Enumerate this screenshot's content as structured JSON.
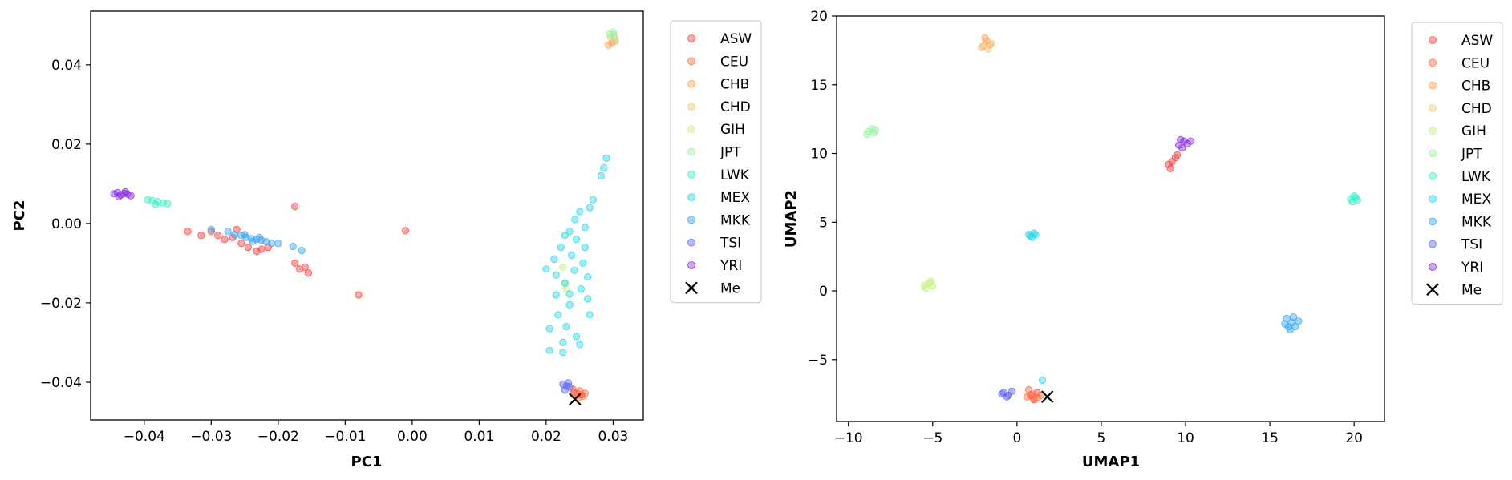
{
  "chart_data": [
    {
      "type": "scatter",
      "title": "",
      "xlabel": "PC1",
      "ylabel": "PC2",
      "xlim": [
        -0.048,
        0.0345
      ],
      "ylim": [
        -0.0495,
        0.0535
      ],
      "xticks": [
        -0.04,
        -0.03,
        -0.02,
        -0.01,
        0.0,
        0.01,
        0.02,
        0.03
      ],
      "xtick_labels": [
        "−0.04",
        "−0.03",
        "−0.02",
        "−0.01",
        "0.00",
        "0.01",
        "0.02",
        "0.03"
      ],
      "yticks": [
        -0.04,
        -0.02,
        0.0,
        0.02,
        0.04
      ],
      "ytick_labels": [
        "−0.04",
        "−0.02",
        "0.00",
        "0.02",
        "0.04"
      ],
      "legend_position": "outside-right",
      "series": [
        {
          "name": "ASW",
          "color": "#ff3b3b",
          "points": [
            [
              -0.0335,
              -0.002
            ],
            [
              -0.0315,
              -0.003
            ],
            [
              -0.03,
              -0.002
            ],
            [
              -0.029,
              -0.003
            ],
            [
              -0.028,
              -0.004
            ],
            [
              -0.0268,
              -0.0035
            ],
            [
              -0.0255,
              -0.005
            ],
            [
              -0.0245,
              -0.006
            ],
            [
              -0.0232,
              -0.007
            ],
            [
              -0.0225,
              -0.0065
            ],
            [
              -0.0262,
              -0.0015
            ],
            [
              -0.0215,
              -0.006
            ],
            [
              -0.0175,
              -0.01
            ],
            [
              -0.0168,
              -0.0115
            ],
            [
              -0.016,
              -0.011
            ],
            [
              -0.0155,
              -0.0125
            ],
            [
              -0.0175,
              0.0043
            ],
            [
              -0.008,
              -0.018
            ],
            [
              -0.001,
              -0.0018
            ],
            [
              0.0242,
              -0.0425
            ],
            [
              0.0252,
              -0.0432
            ]
          ]
        },
        {
          "name": "CEU",
          "color": "#ff6a3d",
          "points": [
            [
              0.024,
              -0.0418
            ],
            [
              0.0245,
              -0.0428
            ],
            [
              0.025,
              -0.0422
            ],
            [
              0.0255,
              -0.0435
            ],
            [
              0.0248,
              -0.044
            ],
            [
              0.0258,
              -0.0428
            ]
          ]
        },
        {
          "name": "CHB",
          "color": "#ff9f55",
          "points": [
            [
              0.0293,
              0.045
            ],
            [
              0.0298,
              0.0455
            ],
            [
              0.0303,
              0.046
            ]
          ]
        },
        {
          "name": "CHD",
          "color": "#f2c77c",
          "points": [
            [
              0.0296,
              0.047
            ],
            [
              0.0301,
              0.0475
            ]
          ]
        },
        {
          "name": "GIH",
          "color": "#c4f07c",
          "points": [
            [
              0.0225,
              -0.011
            ],
            [
              0.0228,
              -0.015
            ],
            [
              0.023,
              -0.0165
            ]
          ]
        },
        {
          "name": "JPT",
          "color": "#96f2a0",
          "points": [
            [
              0.0295,
              0.0478
            ],
            [
              0.03,
              0.0482
            ],
            [
              0.0302,
              0.0468
            ]
          ]
        },
        {
          "name": "LWK",
          "color": "#36f0c8",
          "points": [
            [
              -0.0395,
              0.006
            ],
            [
              -0.0388,
              0.0058
            ],
            [
              -0.038,
              0.0055
            ],
            [
              -0.0372,
              0.0052
            ],
            [
              -0.0365,
              0.005
            ],
            [
              -0.0383,
              0.0048
            ]
          ]
        },
        {
          "name": "MEX",
          "color": "#2ad8e6",
          "points": [
            [
              0.029,
              0.0165
            ],
            [
              0.0286,
              0.014
            ],
            [
              0.0282,
              0.012
            ],
            [
              0.027,
              0.006
            ],
            [
              0.0265,
              0.004
            ],
            [
              0.025,
              0.003
            ],
            [
              0.0243,
              0.001
            ],
            [
              0.0258,
              -0.001
            ],
            [
              0.0235,
              -0.002
            ],
            [
              0.0228,
              -0.003
            ],
            [
              0.0245,
              -0.004
            ],
            [
              0.0222,
              -0.006
            ],
            [
              0.0258,
              -0.006
            ],
            [
              0.0238,
              -0.008
            ],
            [
              0.0212,
              -0.009
            ],
            [
              0.0255,
              -0.01
            ],
            [
              0.02,
              -0.0115
            ],
            [
              0.0215,
              -0.013
            ],
            [
              0.0262,
              -0.0135
            ],
            [
              0.0228,
              -0.015
            ],
            [
              0.0252,
              -0.0165
            ],
            [
              0.0215,
              -0.018
            ],
            [
              0.0262,
              -0.019
            ],
            [
              0.0235,
              -0.0205
            ],
            [
              0.0218,
              -0.023
            ],
            [
              0.0265,
              -0.023
            ],
            [
              0.023,
              -0.026
            ],
            [
              0.0205,
              -0.0265
            ],
            [
              0.0245,
              -0.0285
            ],
            [
              0.0225,
              -0.03
            ],
            [
              0.0205,
              -0.032
            ],
            [
              0.0225,
              -0.0325
            ],
            [
              0.025,
              -0.0305
            ],
            [
              0.0235,
              -0.0178
            ],
            [
              0.0242,
              -0.0118
            ]
          ]
        },
        {
          "name": "MKK",
          "color": "#3aa3f5",
          "points": [
            [
              -0.0275,
              -0.002
            ],
            [
              -0.0265,
              -0.0028
            ],
            [
              -0.0255,
              -0.003
            ],
            [
              -0.0248,
              -0.0035
            ],
            [
              -0.024,
              -0.0038
            ],
            [
              -0.0232,
              -0.004
            ],
            [
              -0.0225,
              -0.0042
            ],
            [
              -0.0218,
              -0.0046
            ],
            [
              -0.021,
              -0.005
            ],
            [
              -0.02,
              -0.005
            ],
            [
              -0.0178,
              -0.0058
            ],
            [
              -0.0165,
              -0.0068
            ],
            [
              -0.025,
              -0.0028
            ],
            [
              -0.0238,
              -0.0045
            ],
            [
              -0.0228,
              -0.0035
            ],
            [
              -0.03,
              -0.0015
            ]
          ]
        },
        {
          "name": "TSI",
          "color": "#5a64f5",
          "points": [
            [
              0.0225,
              -0.0405
            ],
            [
              0.023,
              -0.041
            ],
            [
              0.0235,
              -0.0412
            ],
            [
              0.0228,
              -0.042
            ],
            [
              0.0233,
              -0.0402
            ]
          ]
        },
        {
          "name": "YRI",
          "color": "#8a2be2",
          "points": [
            [
              -0.0445,
              0.0075
            ],
            [
              -0.044,
              0.0078
            ],
            [
              -0.0435,
              0.0072
            ],
            [
              -0.043,
              0.0076
            ],
            [
              -0.0425,
              0.0074
            ],
            [
              -0.042,
              0.007
            ],
            [
              -0.0438,
              0.0068
            ],
            [
              -0.0428,
              0.008
            ]
          ]
        }
      ],
      "marker": {
        "name": "Me",
        "x": 0.0243,
        "y": -0.0443
      }
    },
    {
      "type": "scatter",
      "title": "",
      "xlabel": "UMAP1",
      "ylabel": "UMAP2",
      "xlim": [
        -10.7,
        21.8
      ],
      "ylim": [
        -9.5,
        20.0
      ],
      "xticks": [
        -10,
        -5,
        0,
        5,
        10,
        15,
        20
      ],
      "xtick_labels": [
        "−10",
        "−5",
        "0",
        "5",
        "10",
        "15",
        "20"
      ],
      "yticks": [
        -5,
        0,
        5,
        10,
        15,
        20
      ],
      "ytick_labels": [
        "−5",
        "0",
        "5",
        "10",
        "15",
        "20"
      ],
      "legend_position": "outside-right",
      "series": [
        {
          "name": "ASW",
          "color": "#ff3b3b",
          "points": [
            [
              9.0,
              9.2
            ],
            [
              9.2,
              9.4
            ],
            [
              9.4,
              9.7
            ],
            [
              9.1,
              8.9
            ],
            [
              9.5,
              9.9
            ],
            [
              0.8,
              -7.6
            ],
            [
              1.0,
              -7.9
            ],
            [
              1.2,
              -7.4
            ]
          ]
        },
        {
          "name": "CEU",
          "color": "#ff6a3d",
          "points": [
            [
              0.9,
              -7.5
            ],
            [
              1.2,
              -7.8
            ],
            [
              0.7,
              -7.2
            ],
            [
              1.4,
              -7.6
            ],
            [
              1.0,
              -7.9
            ],
            [
              0.6,
              -7.7
            ]
          ]
        },
        {
          "name": "CHB",
          "color": "#ff9f55",
          "points": [
            [
              -1.8,
              18.2
            ],
            [
              -2.0,
              17.8
            ],
            [
              -1.6,
              17.9
            ],
            [
              -1.9,
              18.4
            ]
          ]
        },
        {
          "name": "CHD",
          "color": "#f2c77c",
          "points": [
            [
              -2.1,
              17.7
            ],
            [
              -1.7,
              17.6
            ],
            [
              -1.5,
              18.0
            ]
          ]
        },
        {
          "name": "GIH",
          "color": "#c4f07c",
          "points": [
            [
              -5.5,
              0.4
            ],
            [
              -5.2,
              0.6
            ],
            [
              -5.0,
              0.3
            ],
            [
              -5.4,
              0.2
            ],
            [
              -5.1,
              0.7
            ]
          ]
        },
        {
          "name": "JPT",
          "color": "#96f2a0",
          "points": [
            [
              -8.8,
              11.6
            ],
            [
              -8.6,
              11.8
            ],
            [
              -8.5,
              11.5
            ],
            [
              -8.9,
              11.4
            ],
            [
              -8.4,
              11.7
            ]
          ]
        },
        {
          "name": "LWK",
          "color": "#36f0c8",
          "points": [
            [
              19.8,
              6.7
            ],
            [
              20.0,
              6.9
            ],
            [
              20.2,
              6.6
            ],
            [
              19.9,
              6.5
            ],
            [
              20.1,
              6.8
            ]
          ]
        },
        {
          "name": "MEX",
          "color": "#2ad8e6",
          "points": [
            [
              0.8,
              4.0
            ],
            [
              1.0,
              4.2
            ],
            [
              0.9,
              3.9
            ],
            [
              1.1,
              4.1
            ],
            [
              0.7,
              4.1
            ],
            [
              1.5,
              -6.5
            ]
          ]
        },
        {
          "name": "MKK",
          "color": "#3aa3f5",
          "points": [
            [
              16.0,
              -2.0
            ],
            [
              16.3,
              -2.3
            ],
            [
              16.5,
              -2.6
            ],
            [
              16.2,
              -2.8
            ],
            [
              15.9,
              -2.4
            ],
            [
              16.7,
              -2.2
            ],
            [
              16.1,
              -2.6
            ],
            [
              16.4,
              -1.9
            ]
          ]
        },
        {
          "name": "TSI",
          "color": "#5a64f5",
          "points": [
            [
              -0.8,
              -7.4
            ],
            [
              -0.5,
              -7.6
            ],
            [
              -0.3,
              -7.3
            ],
            [
              -0.6,
              -7.7
            ],
            [
              -0.9,
              -7.5
            ]
          ]
        },
        {
          "name": "YRI",
          "color": "#8a2be2",
          "points": [
            [
              9.6,
              10.6
            ],
            [
              9.9,
              10.9
            ],
            [
              10.1,
              10.7
            ],
            [
              9.8,
              10.4
            ],
            [
              10.3,
              10.9
            ],
            [
              9.7,
              11.0
            ]
          ]
        }
      ],
      "marker": {
        "name": "Me",
        "x": 1.8,
        "y": -7.7
      }
    }
  ]
}
